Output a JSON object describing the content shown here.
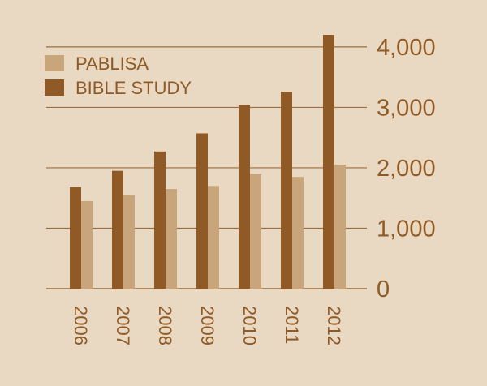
{
  "chart_data": {
    "type": "bar",
    "categories": [
      "2006",
      "2007",
      "2008",
      "2009",
      "2010",
      "2011",
      "2012"
    ],
    "series": [
      {
        "name": "PABLISA",
        "values": [
          1450,
          1550,
          1650,
          1700,
          1900,
          1850,
          2050
        ],
        "color": "#c9a57b"
      },
      {
        "name": "BIBLE STUDY",
        "values": [
          1680,
          1950,
          2270,
          2570,
          3040,
          3260,
          4200
        ],
        "color": "#8f5a26"
      }
    ],
    "ylim": [
      0,
      4200
    ],
    "yticks": [
      {
        "value": 0,
        "label": "0"
      },
      {
        "value": 1000,
        "label": "1,000"
      },
      {
        "value": 2000,
        "label": "2,000"
      },
      {
        "value": 3000,
        "label": "3,000"
      },
      {
        "value": 4000,
        "label": "4,000"
      }
    ],
    "axis_position": "right",
    "legend_position": "top-left",
    "grid": true,
    "colors": {
      "background": "#e9d9c3",
      "grid": "#9b6f3f",
      "text": "#8f5a26"
    }
  }
}
